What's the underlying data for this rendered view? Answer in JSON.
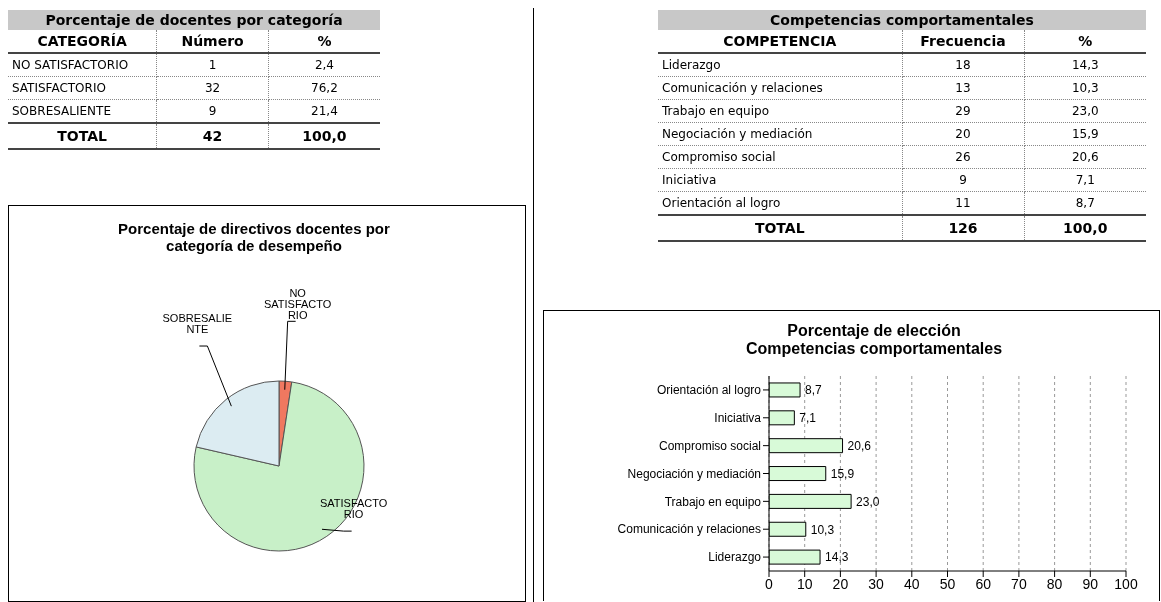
{
  "chart_data": [
    {
      "type": "other",
      "title": "Porcentaje de docentes por categoría",
      "categories": [
        "CATEGORÍA",
        "Número",
        "%"
      ],
      "annotations": [
        "NO SATISFACTORIO",
        "1",
        "2,4",
        "SATISFACTORIO",
        "32",
        "76,2",
        "SOBRESALIENTE",
        "9",
        "21,4",
        "TOTAL",
        "42",
        "100,0"
      ]
    },
    {
      "type": "other",
      "title": "Competencias comportamentales",
      "categories": [
        "COMPETENCIA",
        "Frecuencia",
        "%"
      ],
      "annotations": [
        "Liderazgo",
        "18",
        "14,3",
        "Comunicación y relaciones",
        "13",
        "10,3",
        "Trabajo en equipo",
        "29",
        "23,0",
        "Negociación y mediación",
        "20",
        "15,9",
        "Compromiso social",
        "26",
        "20,6",
        "Iniciativa",
        "9",
        "7,1",
        "Orientación al logro",
        "11",
        "8,7",
        "TOTAL",
        "126",
        "100,0"
      ]
    },
    {
      "type": "pie",
      "title": "Porcentaje de directivos docentes por\ncategoría de desempeño",
      "categories": [
        "NO\nSATISFACTO\nRIO",
        "SATISFACTO\nRIO",
        "SOBRESALIE\nNTE"
      ],
      "values": [
        2.4,
        76.2,
        21.4
      ],
      "colors": [
        "#f07860",
        "#c8f0c8",
        "#dcecf2"
      ]
    },
    {
      "type": "bar",
      "orientation": "horizontal",
      "title": "Porcentaje de elección\nCompetencias comportamentales",
      "categories": [
        "Orientación al logro",
        "Iniciativa",
        "Compromiso social",
        "Negociación y mediación",
        "Trabajo en equipo",
        "Comunicación y relaciones",
        "Liderazgo"
      ],
      "values": [
        8.7,
        7.1,
        20.6,
        15.9,
        23.0,
        10.3,
        14.3
      ],
      "value_labels": [
        "8,7",
        "7,1",
        "20,6",
        "15,9",
        "23,0",
        "10,3",
        "14,3"
      ],
      "color": "#d8fad8",
      "xlim": [
        0,
        100
      ],
      "xticks": [
        0,
        10,
        20,
        30,
        40,
        50,
        60,
        70,
        80,
        90,
        100
      ],
      "grid": "x"
    }
  ]
}
